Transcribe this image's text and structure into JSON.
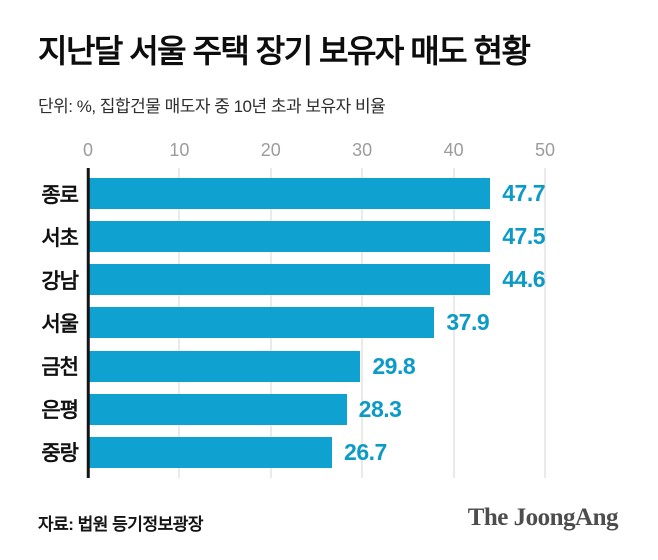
{
  "header": {
    "title": "지난달 서울 주택 장기 보유자 매도 현황",
    "subtitle": "단위: %, 집합건물 매도자 중 10년 초과 보유자 비율"
  },
  "footer": {
    "source": "자료: 법원 등기정보광장",
    "logo": "The JoongAng"
  },
  "colors": {
    "bar": "#0fa2d0",
    "value_label": "#0c9ac6",
    "tick_label": "#9c9c9c",
    "gridline": "#d6d6d6",
    "axis_line": "#141414",
    "title_text": "#0d0d0d",
    "background": "#ffffff"
  },
  "chart_data": {
    "type": "bar",
    "orientation": "horizontal",
    "title": "지난달 서울 주택 장기 보유자 매도 현황",
    "unit_note": "단위: %, 집합건물 매도자 중 10년 초과 보유자 비율",
    "categories": [
      "종로",
      "서초",
      "강남",
      "서울",
      "금천",
      "은평",
      "중랑"
    ],
    "values": [
      47.7,
      47.5,
      44.6,
      37.9,
      29.8,
      28.3,
      26.7
    ],
    "value_labels": [
      "47.7",
      "47.5",
      "44.6",
      "37.9",
      "29.8",
      "28.3",
      "26.7"
    ],
    "x_ticks": [
      0,
      10,
      20,
      30,
      40,
      50
    ],
    "xlim": [
      0,
      50
    ],
    "grid": true,
    "legend": null,
    "source": "자료: 법원 등기정보광장"
  }
}
